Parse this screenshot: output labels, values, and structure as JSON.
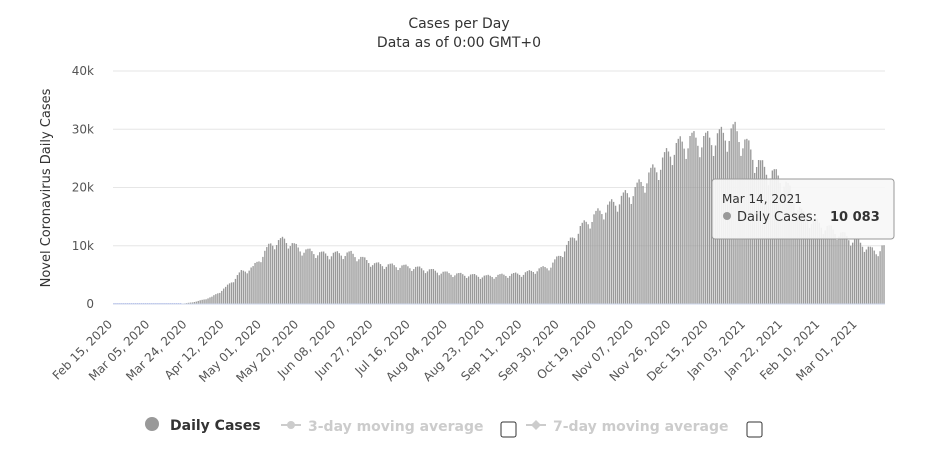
{
  "chart_data": {
    "type": "bar",
    "title": "Cases per Day",
    "subtitle": "Data as of 0:00 GMT+0",
    "ylabel": "Novel Coronavirus Daily Cases",
    "xlabel": "",
    "ylim": [
      0,
      40000
    ],
    "y_ticks": [
      "0",
      "10k",
      "20k",
      "30k",
      "40k"
    ],
    "y_tick_values": [
      0,
      10000,
      20000,
      30000,
      40000
    ],
    "x_start": "2020-02-15",
    "x_end": "2021-03-14",
    "x_tick_labels": [
      "Feb 15, 2020",
      "Mar 05, 2020",
      "Mar 24, 2020",
      "Apr 12, 2020",
      "May 01, 2020",
      "May 20, 2020",
      "Jun 08, 2020",
      "Jun 27, 2020",
      "Jul 16, 2020",
      "Aug 04, 2020",
      "Aug 23, 2020",
      "Sep 11, 2020",
      "Sep 30, 2020",
      "Oct 19, 2020",
      "Nov 07, 2020",
      "Nov 26, 2020",
      "Dec 15, 2020",
      "Jan 03, 2021",
      "Jan 22, 2021",
      "Feb 10, 2021",
      "Mar 01, 2021"
    ],
    "grid": true,
    "bar_color": "#999999",
    "series": [
      {
        "name": "Daily Cases",
        "key_points": [
          [
            "2020-02-15",
            0
          ],
          [
            "2020-03-20",
            0
          ],
          [
            "2020-03-28",
            400
          ],
          [
            "2020-04-05",
            1200
          ],
          [
            "2020-04-12",
            2800
          ],
          [
            "2020-04-20",
            5500
          ],
          [
            "2020-04-26",
            6200
          ],
          [
            "2020-05-05",
            10200
          ],
          [
            "2020-05-12",
            11000
          ],
          [
            "2020-05-20",
            9300
          ],
          [
            "2020-06-01",
            8500
          ],
          [
            "2020-06-15",
            8600
          ],
          [
            "2020-06-27",
            6800
          ],
          [
            "2020-07-16",
            6300
          ],
          [
            "2020-08-04",
            5200
          ],
          [
            "2020-08-23",
            4700
          ],
          [
            "2020-09-11",
            5200
          ],
          [
            "2020-09-25",
            6500
          ],
          [
            "2020-09-30",
            8500
          ],
          [
            "2020-10-10",
            13000
          ],
          [
            "2020-10-19",
            15500
          ],
          [
            "2020-11-07",
            19500
          ],
          [
            "2020-11-20",
            24000
          ],
          [
            "2020-11-26",
            26500
          ],
          [
            "2020-12-05",
            28000
          ],
          [
            "2020-12-15",
            28000
          ],
          [
            "2020-12-28",
            29500
          ],
          [
            "2021-01-03",
            27000
          ],
          [
            "2021-01-10",
            23500
          ],
          [
            "2021-01-22",
            21000
          ],
          [
            "2021-02-01",
            15000
          ],
          [
            "2021-02-10",
            13500
          ],
          [
            "2021-03-01",
            10500
          ],
          [
            "2021-03-10",
            8800
          ],
          [
            "2021-03-14",
            10083
          ]
        ]
      }
    ],
    "tooltip": {
      "date": "Mar 14, 2021",
      "series": "Daily Cases:",
      "value": "10 083"
    },
    "legend": {
      "placement": "bottom",
      "items": [
        {
          "label": "Daily Cases",
          "active": true
        },
        {
          "label": "3-day moving average",
          "active": false
        },
        {
          "label": "7-day moving average",
          "active": false
        }
      ]
    }
  }
}
